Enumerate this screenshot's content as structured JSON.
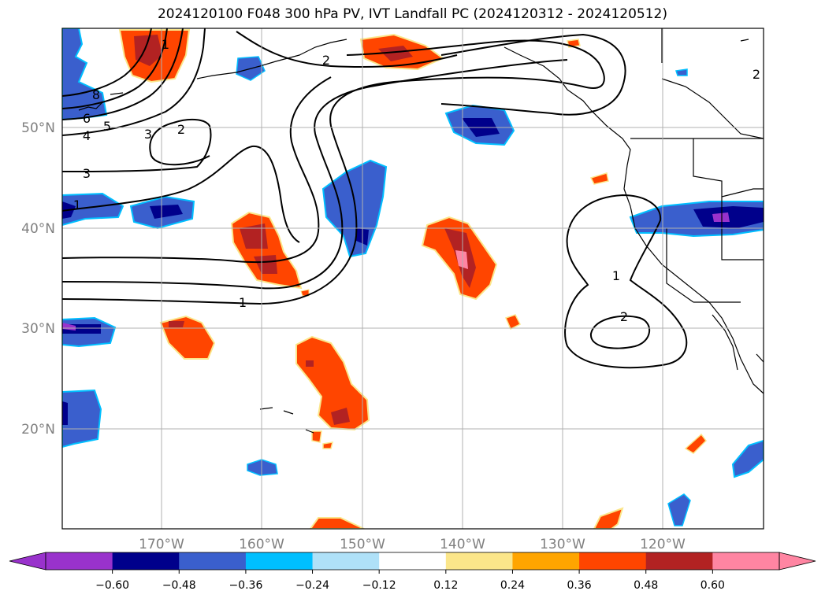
{
  "title": "2024120100 F048 300 hPa PV, IVT Landfall PC (2024120312 - 2024120512)",
  "axes": {
    "lat_labels": [
      "50°N",
      "40°N",
      "30°N",
      "20°N"
    ],
    "lon_labels": [
      "170°W",
      "160°W",
      "150°W",
      "140°W",
      "130°W",
      "120°W"
    ],
    "label_color": "#808080",
    "grid_color": "#b0b0b0"
  },
  "contour_labels": [
    "8",
    "6",
    "5",
    "4",
    "3",
    "2",
    "3",
    "1",
    "1",
    "2",
    "1",
    "1",
    "2",
    "2"
  ],
  "colorbar": {
    "ticks": [
      "−0.60",
      "−0.48",
      "−0.36",
      "−0.24",
      "−0.12",
      "0.12",
      "0.24",
      "0.36",
      "0.48",
      "0.60"
    ],
    "colors": [
      "#9932CC",
      "#00008B",
      "#3A5FCD",
      "#00BFFF",
      "#AFE1F8",
      "#FFFFFF",
      "#FBE68A",
      "#FFA500",
      "#FF4500",
      "#B22222",
      "#FF85A2"
    ],
    "extend": "both"
  }
}
